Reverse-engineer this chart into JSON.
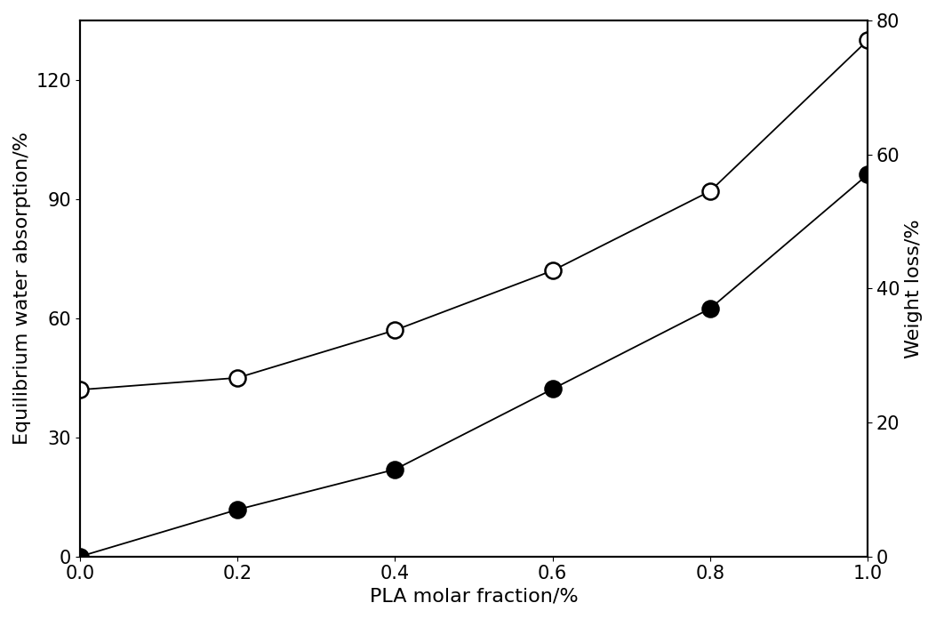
{
  "x": [
    0.0,
    0.2,
    0.4,
    0.6,
    0.8,
    1.0
  ],
  "y_water_absorption": [
    42.0,
    45.0,
    57.0,
    72.0,
    92.0,
    130.0
  ],
  "y_weight_loss": [
    0.0,
    7.0,
    13.0,
    25.0,
    37.0,
    57.0
  ],
  "xlabel": "PLA molar fraction/%",
  "ylabel_left": "Equilibrium water absorption/%",
  "ylabel_right": "Weight loss/%",
  "xlim": [
    0.0,
    1.0
  ],
  "ylim_left": [
    0,
    135
  ],
  "ylim_right": [
    0,
    80
  ],
  "yticks_left": [
    0,
    30,
    60,
    90,
    120
  ],
  "yticks_right": [
    0,
    20,
    40,
    60,
    80
  ],
  "xticks": [
    0.0,
    0.2,
    0.4,
    0.6,
    0.8,
    1.0
  ],
  "line_color": "#000000",
  "marker_open_facecolor": "#ffffff",
  "marker_filled_facecolor": "#000000",
  "background_color": "#ffffff",
  "marker_size": 13,
  "line_width": 1.3,
  "label_font_size": 16,
  "tick_font_size": 15
}
